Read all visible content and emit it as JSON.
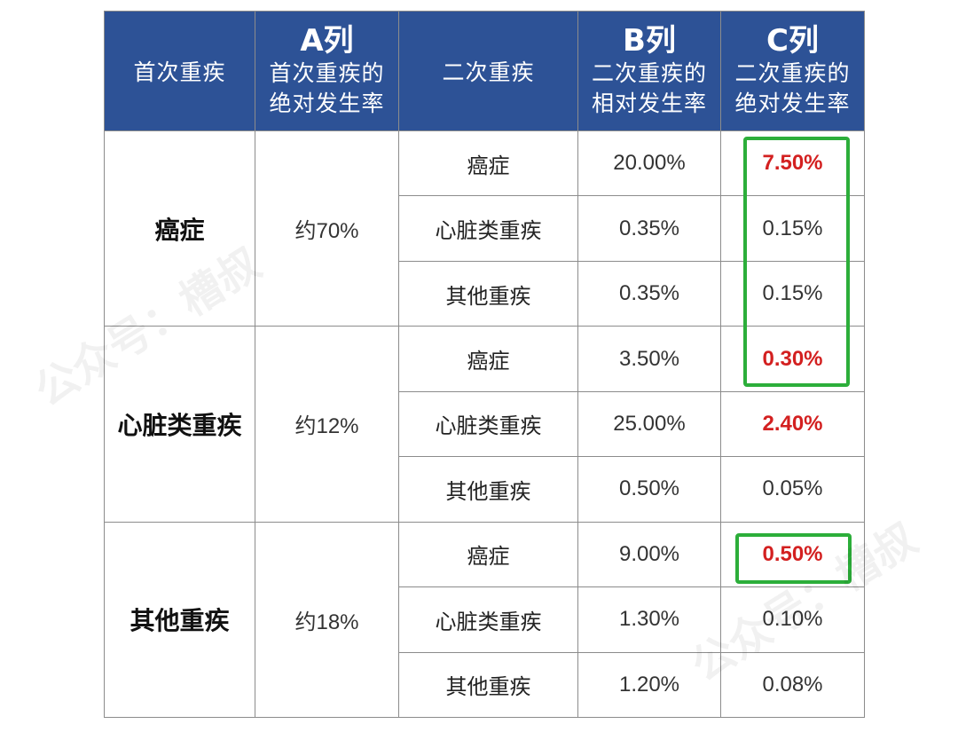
{
  "watermark": "公众号：槽叔",
  "header": {
    "col1": "首次重疾",
    "col2_top": "A列",
    "col2_line1": "首次重疾的",
    "col2_line2": "绝对发生率",
    "col3": "二次重疾",
    "col4_top": "B列",
    "col4_line1": "二次重疾的",
    "col4_line2": "相对发生率",
    "col5_top": "C列",
    "col5_line1": "二次重疾的",
    "col5_line2": "绝对发生率"
  },
  "groups": [
    {
      "first": "癌症",
      "a_rate": "约70%",
      "rows": [
        {
          "second": "癌症",
          "b_rate": "20.00%",
          "c_rate": "7.50%"
        },
        {
          "second": "心脏类重疾",
          "b_rate": "0.35%",
          "c_rate": "0.15%"
        },
        {
          "second": "其他重疾",
          "b_rate": "0.35%",
          "c_rate": "0.15%"
        }
      ]
    },
    {
      "first": "心脏类重疾",
      "a_rate": "约12%",
      "rows": [
        {
          "second": "癌症",
          "b_rate": "3.50%",
          "c_rate": "0.30%"
        },
        {
          "second": "心脏类重疾",
          "b_rate": "25.00%",
          "c_rate": "2.40%"
        },
        {
          "second": "其他重疾",
          "b_rate": "0.50%",
          "c_rate": "0.05%"
        }
      ]
    },
    {
      "first": "其他重疾",
      "a_rate": "约18%",
      "rows": [
        {
          "second": "癌症",
          "b_rate": "9.00%",
          "c_rate": "0.50%"
        },
        {
          "second": "心脏类重疾",
          "b_rate": "1.30%",
          "c_rate": "0.10%"
        },
        {
          "second": "其他重疾",
          "b_rate": "1.20%",
          "c_rate": "0.08%"
        }
      ]
    }
  ],
  "highlight_color": "#d32020",
  "box_color": "#2cae3a",
  "header_color": "#2d5296"
}
